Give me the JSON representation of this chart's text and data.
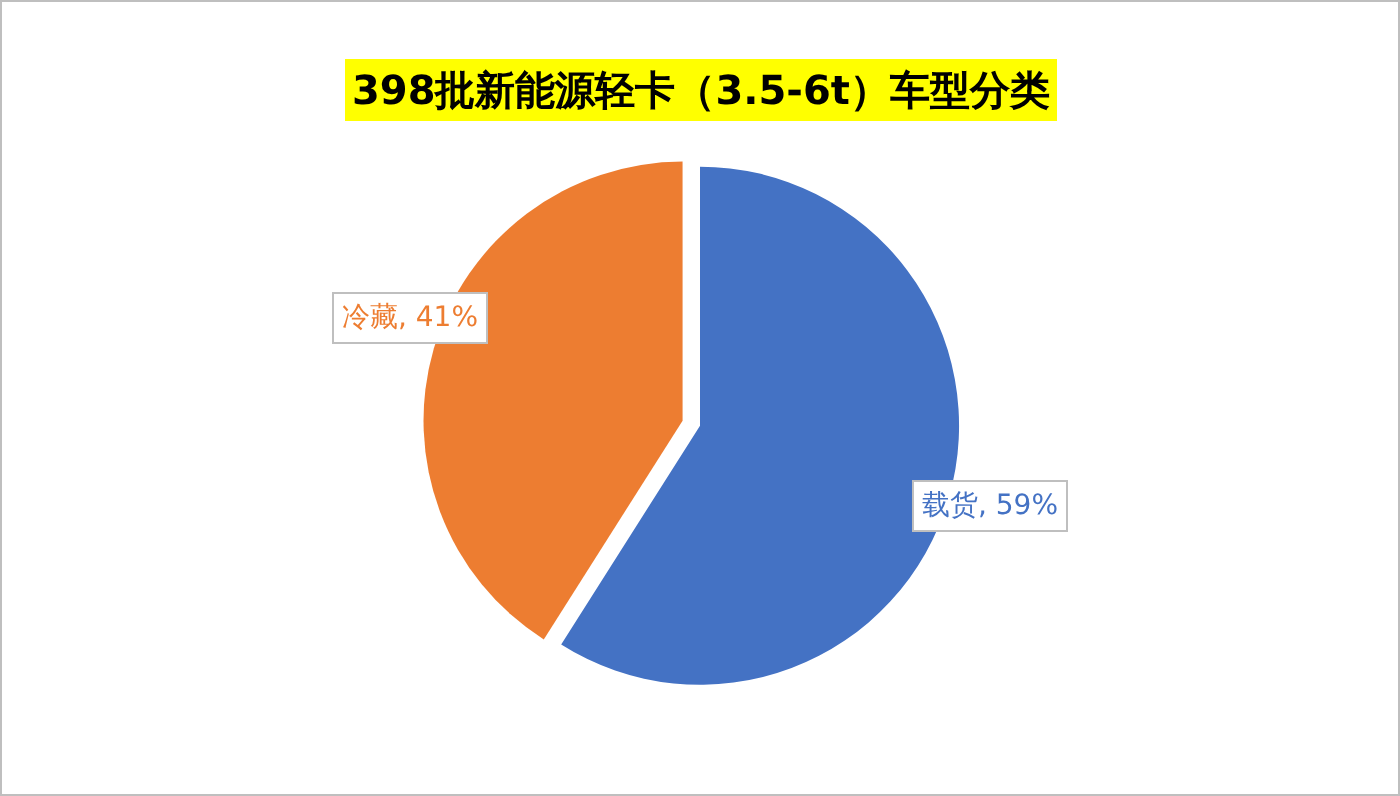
{
  "chart_data": {
    "type": "pie",
    "title": "398批新能源轻卡（3.5-6t）车型分类",
    "categories": [
      "载货",
      "冷藏"
    ],
    "values": [
      59,
      41
    ],
    "value_labels": [
      "59%",
      "41%"
    ],
    "colors": [
      "#4472c4",
      "#ed7d31"
    ],
    "legend": false
  }
}
